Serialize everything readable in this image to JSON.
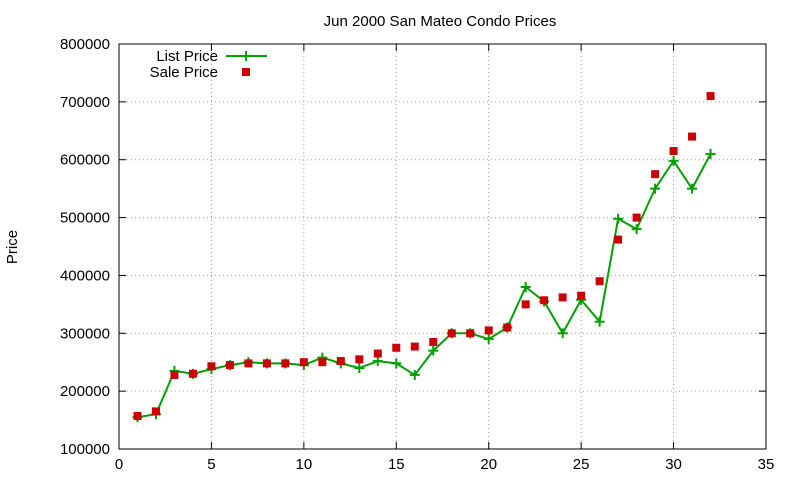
{
  "chart_data": {
    "type": "line",
    "title": "Jun 2000 San Mateo Condo Prices",
    "xlabel": "",
    "ylabel": "Price",
    "xlim": [
      0,
      35
    ],
    "ylim": [
      100000,
      800000
    ],
    "x_ticks": [
      0,
      5,
      10,
      15,
      20,
      25,
      30,
      35
    ],
    "y_ticks": [
      100000,
      200000,
      300000,
      400000,
      500000,
      600000,
      700000,
      800000
    ],
    "x_tick_labels": [
      "0",
      "5",
      "10",
      "15",
      "20",
      "25",
      "30",
      "35"
    ],
    "y_tick_labels": [
      "100000",
      "200000",
      "300000",
      "400000",
      "500000",
      "600000",
      "700000",
      "800000"
    ],
    "grid": true,
    "legend_position": "top-left",
    "series": [
      {
        "name": "List Price",
        "style": "linespoints",
        "color": "#00a000",
        "x": [
          1,
          2,
          3,
          4,
          5,
          6,
          7,
          8,
          9,
          10,
          11,
          12,
          13,
          14,
          15,
          16,
          17,
          18,
          19,
          20,
          21,
          22,
          23,
          24,
          25,
          26,
          27,
          28,
          29,
          30,
          31,
          32
        ],
        "values": [
          155000,
          160000,
          235000,
          230000,
          238000,
          245000,
          250000,
          248000,
          248000,
          245000,
          258000,
          248000,
          240000,
          252000,
          248000,
          228000,
          270000,
          300000,
          300000,
          290000,
          310000,
          380000,
          355000,
          300000,
          358000,
          320000,
          498000,
          480000,
          550000,
          598000,
          550000,
          610000
        ]
      },
      {
        "name": "Sale Price",
        "style": "points",
        "color": "#cc0000",
        "x": [
          1,
          2,
          3,
          4,
          5,
          6,
          7,
          8,
          9,
          10,
          11,
          12,
          13,
          14,
          15,
          16,
          17,
          18,
          19,
          20,
          21,
          22,
          23,
          24,
          25,
          26,
          27,
          28,
          29,
          30,
          31,
          32
        ],
        "values": [
          157000,
          165000,
          228000,
          230000,
          243000,
          245000,
          248000,
          248000,
          248000,
          250000,
          250000,
          252000,
          255000,
          265000,
          275000,
          277000,
          285000,
          300000,
          300000,
          305000,
          310000,
          350000,
          357000,
          362000,
          365000,
          390000,
          462000,
          500000,
          575000,
          615000,
          640000,
          710000
        ]
      }
    ]
  }
}
